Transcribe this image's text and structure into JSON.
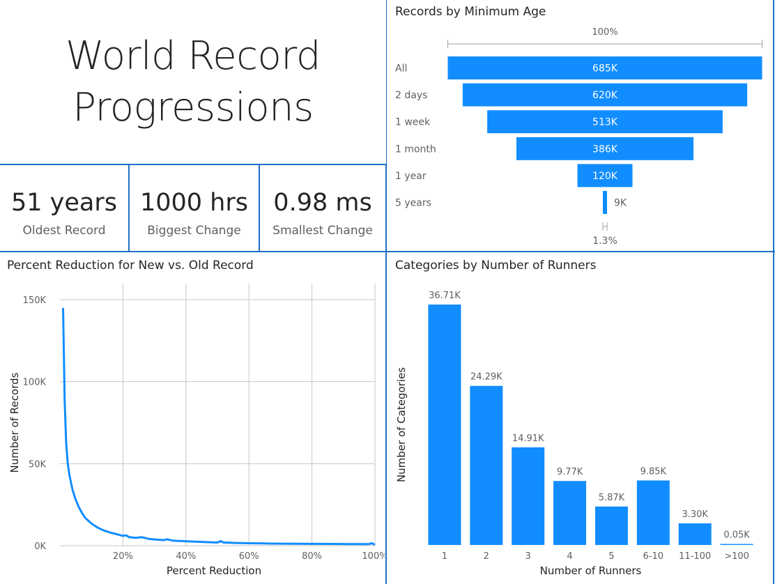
{
  "title": {
    "line1": "World Record",
    "line2": "Progressions"
  },
  "kpis": [
    {
      "value": "51 years",
      "label": "Oldest Record"
    },
    {
      "value": "1000 hrs",
      "label": "Biggest Change"
    },
    {
      "value": "0.98 ms",
      "label": "Smallest Change"
    }
  ],
  "colors": {
    "accent": "#118dff",
    "border": "#1f6fc5",
    "gridline": "#c8c6c4",
    "text": "#252423",
    "muted": "#605e5c"
  },
  "chart_data": [
    {
      "type": "funnel",
      "title": "Records by Minimum Age",
      "top_label": "100%",
      "bottom_label": "1.3%",
      "categories": [
        "All",
        "2 days",
        "1 week",
        "1 month",
        "1 year",
        "5 years"
      ],
      "values": [
        685,
        620,
        513,
        386,
        120,
        9
      ],
      "value_labels": [
        "685K",
        "620K",
        "513K",
        "386K",
        "120K",
        "9K"
      ]
    },
    {
      "type": "line",
      "title": "Percent Reduction for New vs. Old Record",
      "xlabel": "Percent Reduction",
      "ylabel": "Number of Records",
      "xlim": [
        0,
        100
      ],
      "ylim": [
        0,
        150000
      ],
      "x_ticks": [
        "20%",
        "40%",
        "60%",
        "80%",
        "100%"
      ],
      "y_ticks": [
        "150K",
        "100K",
        "50K",
        "0K"
      ],
      "grid": true,
      "x": [
        1,
        1.5,
        2,
        2.5,
        3,
        4,
        5,
        6,
        7,
        8,
        10,
        12,
        14,
        16,
        18,
        20,
        21,
        22,
        24,
        26,
        28,
        30,
        33,
        34,
        36,
        40,
        45,
        50,
        51,
        52,
        55,
        60,
        65,
        70,
        80,
        90,
        98,
        99,
        100
      ],
      "y": [
        145000,
        88000,
        62000,
        50000,
        43000,
        34000,
        28000,
        23500,
        20000,
        17000,
        13500,
        11000,
        9200,
        8000,
        7000,
        6000,
        6300,
        5200,
        4800,
        5200,
        4200,
        3800,
        3400,
        3900,
        3000,
        2700,
        2300,
        1900,
        2800,
        1900,
        1700,
        1500,
        1350,
        1250,
        1100,
        1000,
        950,
        1500,
        600
      ]
    },
    {
      "type": "bar",
      "title": "Categories by Number of Runners",
      "xlabel": "Number of Runners",
      "ylabel": "Number of Categories",
      "categories": [
        "1",
        "2",
        "3",
        "4",
        "5",
        "6-10",
        "11-100",
        ">100"
      ],
      "values": [
        36.71,
        24.29,
        14.91,
        9.77,
        5.87,
        9.85,
        3.3,
        0.05
      ],
      "value_labels": [
        "36.71K",
        "24.29K",
        "14.91K",
        "9.77K",
        "5.87K",
        "9.85K",
        "3.30K",
        "0.05K"
      ]
    }
  ]
}
